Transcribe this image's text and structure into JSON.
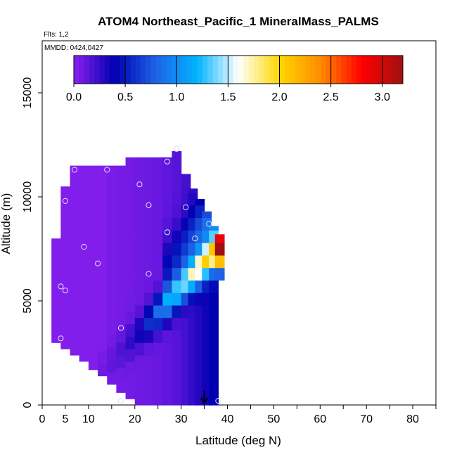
{
  "chart_data": {
    "type": "heatmap",
    "title": "ATOM4 Northeast_Pacific_1 MineralMass_PALMS",
    "flights_label": "Flts: 1,2",
    "mmdd_label": "MMDD: 0424,0427",
    "xlabel": "Latitude (deg N)",
    "ylabel": "Altitude (m)",
    "xlim": [
      0,
      85
    ],
    "ylim": [
      0,
      17500
    ],
    "x_ticks": [
      0,
      5,
      10,
      20,
      30,
      40,
      50,
      60,
      70,
      80
    ],
    "x_minor_ticks": [
      15,
      25,
      35,
      45,
      55,
      65,
      75,
      85
    ],
    "y_ticks": [
      0,
      5000,
      10000,
      15000
    ],
    "grid": false,
    "colorbar": {
      "placement": "top",
      "range": [
        0,
        3.2
      ],
      "ticks": [
        0.0,
        0.5,
        1.0,
        1.5,
        2.0,
        2.5,
        3.0
      ],
      "tick_labels": [
        "0.0",
        "0.5",
        "1.0",
        "1.5",
        "2.0",
        "2.5",
        "3.0"
      ],
      "colors": [
        "#8b20f0",
        "#0000b0",
        "#1e64e6",
        "#00b4ff",
        "#ffffff",
        "#ffd700",
        "#ff8c00",
        "#ff0000",
        "#a01010"
      ]
    },
    "bin_size": [
      2,
      600
    ],
    "columns": [
      {
        "lat": 3,
        "alt_min": 3000,
        "alt_max": 8000,
        "background": 0.03,
        "plume": 0.0
      },
      {
        "lat": 5,
        "alt_min": 2700,
        "alt_max": 10500,
        "background": 0.03,
        "plume": 0.0
      },
      {
        "lat": 7,
        "alt_min": 2400,
        "alt_max": 11500,
        "background": 0.03,
        "plume": 0.0
      },
      {
        "lat": 9,
        "alt_min": 2100,
        "alt_max": 11500,
        "background": 0.03,
        "plume": 0.0
      },
      {
        "lat": 11,
        "alt_min": 1700,
        "alt_max": 11500,
        "background": 0.03,
        "plume": 0.0
      },
      {
        "lat": 13,
        "alt_min": 1400,
        "alt_max": 11500,
        "background": 0.03,
        "plume": 0.05
      },
      {
        "lat": 15,
        "alt_min": 1000,
        "alt_max": 11500,
        "background": 0.05,
        "plume": 0.08
      },
      {
        "lat": 17,
        "alt_min": 600,
        "alt_max": 11500,
        "background": 0.06,
        "plume": 0.12
      },
      {
        "lat": 19,
        "alt_min": 300,
        "alt_max": 11900,
        "background": 0.07,
        "plume": 0.2
      },
      {
        "lat": 21,
        "alt_min": 0,
        "alt_max": 11900,
        "background": 0.08,
        "plume": 0.3
      },
      {
        "lat": 23,
        "alt_min": 0,
        "alt_max": 11900,
        "background": 0.09,
        "plume": 0.5
      },
      {
        "lat": 25,
        "alt_min": 0,
        "alt_max": 11900,
        "background": 0.1,
        "plume": 0.75
      },
      {
        "lat": 27,
        "alt_min": 0,
        "alt_max": 11900,
        "background": 0.12,
        "plume": 0.95
      },
      {
        "lat": 29,
        "alt_min": 0,
        "alt_max": 12200,
        "background": 0.15,
        "plume": 1.1
      },
      {
        "lat": 31,
        "alt_min": 0,
        "alt_max": 11100,
        "background": 0.2,
        "plume": 1.2
      },
      {
        "lat": 32.5,
        "alt_min": 0,
        "alt_max": 10400,
        "background": 0.25,
        "plume": 1.3
      },
      {
        "lat": 34,
        "alt_min": 0,
        "alt_max": 9900,
        "background": 0.3,
        "plume": 1.4
      },
      {
        "lat": 35.5,
        "alt_min": 0,
        "alt_max": 9300,
        "background": 0.35,
        "plume": 1.5
      },
      {
        "lat": 37,
        "alt_min": 0,
        "alt_max": 8600,
        "background": 0.4,
        "plume": 1.6
      },
      {
        "lat": 38.3,
        "alt_min": 6000,
        "alt_max": 8200,
        "background": 0.5,
        "plume": 2.9
      }
    ],
    "plume_band": {
      "alt_center_at_lat_10": 1000,
      "alt_slope_per_deg": 230,
      "width": 800
    },
    "sample_points": [
      [
        4,
        3200
      ],
      [
        4,
        5700
      ],
      [
        5,
        5500
      ],
      [
        5,
        9800
      ],
      [
        7,
        11300
      ],
      [
        9,
        7600
      ],
      [
        12,
        6800
      ],
      [
        14,
        11300
      ],
      [
        17,
        3700
      ],
      [
        17,
        200
      ],
      [
        21,
        10600
      ],
      [
        23,
        6300
      ],
      [
        23,
        9600
      ],
      [
        27,
        8300
      ],
      [
        27,
        11700
      ],
      [
        29,
        12300
      ],
      [
        31,
        9500
      ],
      [
        33,
        8000
      ],
      [
        36,
        8700
      ],
      [
        38,
        200
      ]
    ],
    "arrow": {
      "lat": 35,
      "alt_from": 700,
      "alt_to": 0
    }
  }
}
